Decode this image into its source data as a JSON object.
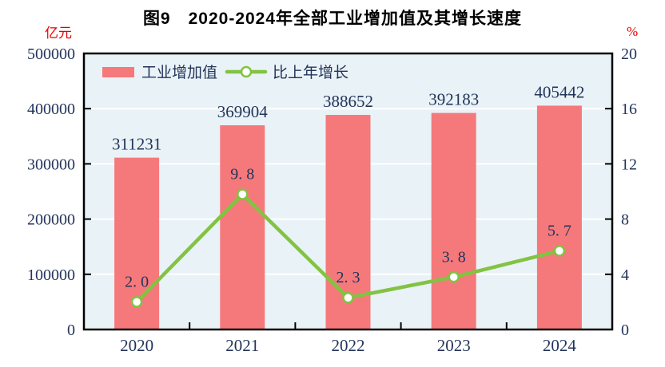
{
  "left_axis": {
    "unit": "亿元",
    "ticks": [
      0,
      100000,
      200000,
      300000,
      400000,
      500000
    ],
    "tick_labels": [
      "0",
      "100000",
      "200000",
      "300000",
      "400000",
      "500000"
    ]
  },
  "right_axis": {
    "unit": "%",
    "ticks": [
      0,
      4,
      8,
      12,
      16,
      20
    ],
    "tick_labels": [
      "0",
      "4",
      "8",
      "12",
      "16",
      "20"
    ]
  },
  "legend": {
    "bar_label": "工业增加值",
    "line_label": "比上年增长"
  },
  "colors": {
    "bar": "#F5797B",
    "line": "#82C342",
    "marker_fill": "#FFFFFF",
    "plot_bg": "#E9F2F6",
    "grid": "#FFFFFF",
    "axis": "#000000",
    "text": "#23345B",
    "unit_text": "#E60000",
    "title_text": "#000000",
    "page_bg": "#FFFFFF"
  },
  "chart_data": {
    "type": "bar",
    "title": "图9　2020-2024年全部工业增加值及其增长速度",
    "categories": [
      "2020",
      "2021",
      "2022",
      "2023",
      "2024"
    ],
    "series": [
      {
        "name": "工业增加值",
        "type": "bar",
        "axis": "left",
        "unit": "亿元",
        "values": [
          311231,
          369904,
          388652,
          392183,
          405442
        ],
        "value_labels": [
          "311231",
          "369904",
          "388652",
          "392183",
          "405442"
        ]
      },
      {
        "name": "比上年增长",
        "type": "line",
        "axis": "right",
        "unit": "%",
        "values": [
          2.0,
          9.8,
          2.3,
          3.8,
          5.7
        ],
        "value_labels": [
          "2. 0",
          "9. 8",
          "2. 3",
          "3. 8",
          "5. 7"
        ]
      }
    ],
    "left_ylim": [
      0,
      500000
    ],
    "right_ylim": [
      0,
      20
    ],
    "grid": true,
    "legend_position": "top-left-inside"
  }
}
